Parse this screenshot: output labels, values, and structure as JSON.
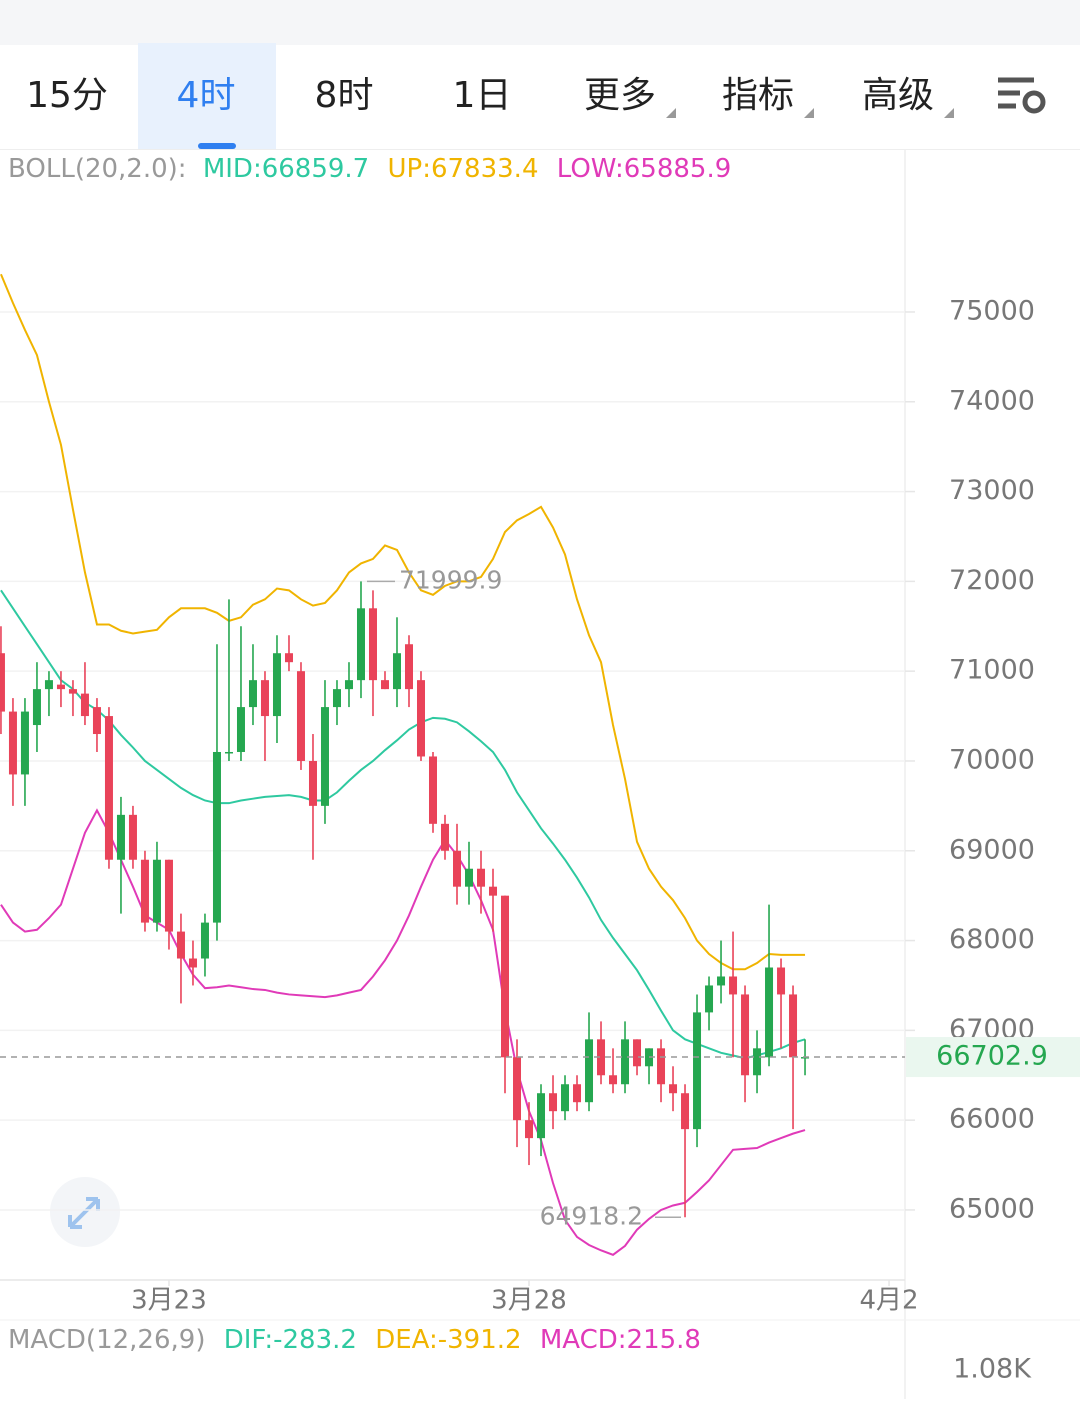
{
  "tabs": [
    "15分",
    "4时",
    "8时",
    "1日",
    "更多",
    "指标",
    "高级"
  ],
  "active_tab": 1,
  "chart_data": {
    "type": "candlestick",
    "indicator_label": "BOLL(20,2.0):",
    "boll_legend": [
      "MID:66859.7",
      "UP:67833.4",
      "LOW:65885.9"
    ],
    "macd_label": "MACD(12,26,9)",
    "macd_legend": [
      "DIF:-283.2",
      "DEA:-391.2",
      "MACD:215.8"
    ],
    "macd_axis_label": "1.08K",
    "up_color": "#25a750",
    "down_color": "#e94359",
    "ylim": [
      64220,
      76414
    ],
    "yticks": [
      65000,
      66000,
      67000,
      68000,
      69000,
      70000,
      71000,
      72000,
      73000,
      74000,
      75000
    ],
    "xlim": [
      -14.08,
      61.33
    ],
    "xticks": [
      {
        "value": 0,
        "label": "3月23"
      },
      {
        "value": 30,
        "label": "3月28"
      },
      {
        "value": 60,
        "label": "4月2"
      }
    ],
    "grid": true,
    "x": [
      -14,
      -13,
      -12,
      -11,
      -10,
      -9,
      -8,
      -7,
      -6,
      -5,
      -4,
      -3,
      -2,
      -1,
      0,
      1,
      2,
      3,
      4,
      5,
      6,
      7,
      8,
      9,
      10,
      11,
      12,
      13,
      14,
      15,
      16,
      17,
      18,
      19,
      20,
      21,
      22,
      23,
      24,
      25,
      26,
      27,
      28,
      29,
      30,
      31,
      32,
      33,
      34,
      35,
      36,
      37,
      38,
      39,
      40,
      41,
      42,
      43,
      44,
      45,
      46,
      47,
      48,
      49,
      50,
      51,
      52,
      53
    ],
    "open": [
      71200,
      70550,
      69850,
      70400,
      70800,
      70850,
      70800,
      70750,
      70600,
      70500,
      68900,
      69400,
      68900,
      68200,
      68900,
      68100,
      67800,
      67800,
      68200,
      70100,
      70100,
      70600,
      70900,
      70500,
      71200,
      71000,
      70000,
      69500,
      70600,
      70800,
      70900,
      71700,
      70900,
      70800,
      71300,
      70900,
      70050,
      69300,
      69000,
      68600,
      68800,
      68600,
      68500,
      66700,
      66000,
      65800,
      66300,
      66100,
      66400,
      66200,
      66900,
      66500,
      66400,
      66900,
      66600,
      66800,
      66400,
      66300,
      65900,
      67200,
      67500,
      67600,
      67400,
      66500,
      66700,
      67700,
      67400,
      66700
    ],
    "high": [
      71500,
      70700,
      70700,
      71100,
      71000,
      71000,
      70900,
      71100,
      70700,
      70600,
      69600,
      69500,
      69000,
      69100,
      68900,
      68300,
      68000,
      68300,
      71300,
      71800,
      71500,
      71300,
      71000,
      71400,
      71400,
      71100,
      70300,
      70900,
      70900,
      71100,
      71999.9,
      71900,
      71000,
      71600,
      71400,
      71000,
      70100,
      69400,
      69300,
      69100,
      69000,
      68800,
      68500,
      66900,
      66200,
      66400,
      66500,
      66500,
      66500,
      67200,
      67100,
      66800,
      67100,
      66900,
      66800,
      66900,
      66600,
      66400,
      67400,
      67600,
      68000,
      68100,
      67500,
      67000,
      68400,
      67800,
      67500,
      66900
    ],
    "low": [
      70300,
      69500,
      69500,
      70100,
      70500,
      70600,
      70500,
      70400,
      70100,
      68800,
      68300,
      68800,
      68100,
      68100,
      67900,
      67300,
      67500,
      67600,
      68000,
      70000,
      70000,
      70400,
      70000,
      70200,
      71000,
      69900,
      68900,
      69300,
      70400,
      70600,
      70700,
      70500,
      70800,
      70600,
      70600,
      70000,
      69200,
      68900,
      68400,
      68400,
      68300,
      68100,
      66300,
      65700,
      65500,
      65600,
      65900,
      66000,
      66100,
      66100,
      66400,
      66300,
      66300,
      66500,
      66400,
      66200,
      66100,
      64918.2,
      65700,
      67000,
      67300,
      66700,
      66200,
      66300,
      66600,
      66800,
      65900,
      66500
    ],
    "close": [
      70550,
      69850,
      70550,
      70800,
      70900,
      70800,
      70750,
      70500,
      70300,
      68900,
      69400,
      68900,
      68200,
      68900,
      68100,
      67800,
      67700,
      68200,
      70100,
      70100,
      70600,
      70900,
      70500,
      71200,
      71100,
      70000,
      69500,
      70600,
      70800,
      70900,
      71700,
      70900,
      70800,
      71200,
      70800,
      70050,
      69300,
      69000,
      68600,
      68800,
      68600,
      68500,
      66700,
      66000,
      65800,
      66300,
      66100,
      66400,
      66200,
      66900,
      66500,
      66400,
      66900,
      66600,
      66800,
      66400,
      66300,
      65900,
      67200,
      67500,
      67600,
      67400,
      66500,
      66800,
      67700,
      67400,
      66700,
      66702.9
    ],
    "series": [
      {
        "color": "#2ec9a0",
        "values": [
          71900,
          71700,
          71500,
          71300,
          71100,
          70900,
          70800,
          70650,
          70570,
          70450,
          70290,
          70150,
          70000,
          69900,
          69800,
          69700,
          69620,
          69560,
          69530,
          69530,
          69560,
          69580,
          69600,
          69610,
          69620,
          69600,
          69560,
          69560,
          69650,
          69780,
          69900,
          70000,
          70120,
          70230,
          70350,
          70430,
          70480,
          70470,
          70430,
          70330,
          70220,
          70100,
          69900,
          69650,
          69450,
          69250,
          69080,
          68900,
          68700,
          68480,
          68230,
          68030,
          67850,
          67670,
          67450,
          67220,
          67000,
          66900,
          66850,
          66800,
          66750,
          66720,
          66690,
          66720,
          66760,
          66800,
          66860,
          66900
        ]
      },
      {
        "color": "#f0b400",
        "values": [
          75420,
          75100,
          74800,
          74520,
          74000,
          73520,
          72800,
          72100,
          71520,
          71520,
          71450,
          71420,
          71440,
          71460,
          71600,
          71700,
          71700,
          71700,
          71650,
          71560,
          71600,
          71740,
          71800,
          71920,
          71900,
          71800,
          71730,
          71760,
          71900,
          72100,
          72200,
          72250,
          72400,
          72350,
          72100,
          71900,
          71850,
          71950,
          72000,
          72000,
          72050,
          72250,
          72550,
          72680,
          72750,
          72830,
          72600,
          72300,
          71800,
          71400,
          71100,
          70400,
          69800,
          69100,
          68800,
          68600,
          68450,
          68250,
          68000,
          67850,
          67750,
          67680,
          67680,
          67750,
          67850,
          67840,
          67840,
          67840
        ]
      },
      {
        "color": "#e03ab8",
        "values": [
          68400,
          68200,
          68100,
          68120,
          68250,
          68400,
          68800,
          69200,
          69450,
          69200,
          68900,
          68600,
          68280,
          68200,
          68120,
          67850,
          67620,
          67470,
          67480,
          67500,
          67480,
          67460,
          67450,
          67420,
          67400,
          67390,
          67380,
          67370,
          67390,
          67420,
          67450,
          67600,
          67780,
          68000,
          68280,
          68600,
          68900,
          69120,
          68950,
          68730,
          68450,
          68120,
          67230,
          66560,
          66100,
          65780,
          65300,
          64890,
          64700,
          64610,
          64550,
          64500,
          64600,
          64780,
          64900,
          65000,
          65050,
          65080,
          65200,
          65330,
          65500,
          65670,
          65680,
          65690,
          65750,
          65800,
          65850,
          65890
        ]
      }
    ]
  }
}
